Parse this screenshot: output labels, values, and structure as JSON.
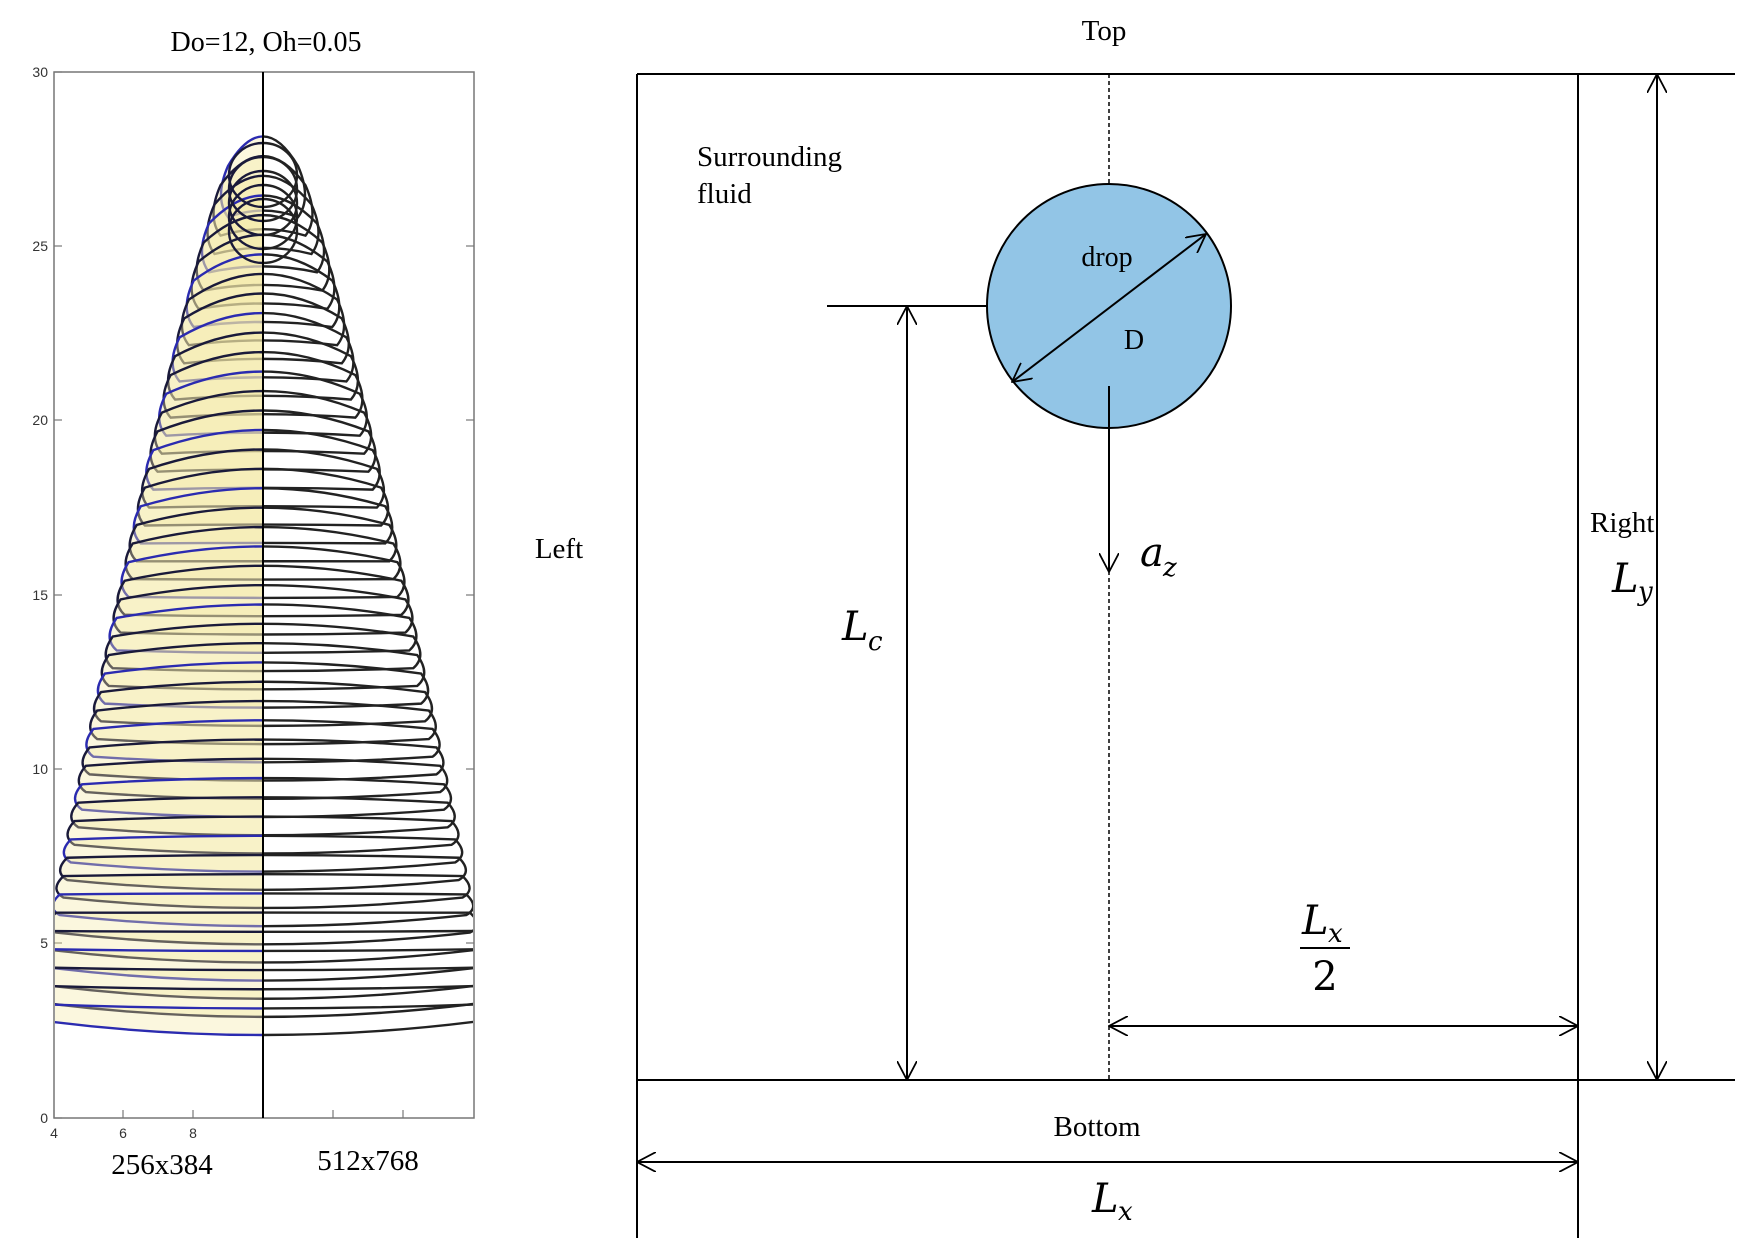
{
  "left_panel": {
    "title": "Do=12, Oh=0.05",
    "y_ticks": [
      "0",
      "5",
      "10",
      "15",
      "20",
      "25",
      "30"
    ],
    "x_ticks": [
      "4",
      "6",
      "8"
    ],
    "left_half_label": "256x384",
    "right_half_label": "512x768",
    "colors": {
      "left_contour": "#1a1a3a",
      "left_fill": "#f4e9a0",
      "left_edge": "#2b2bb0",
      "right_contour": "#222222"
    }
  },
  "domain_diagram": {
    "top_label": "Top",
    "bottom_label": "Bottom",
    "left_label": "Left",
    "right_label": "Right",
    "surrounding_fluid_line1": "Surrounding",
    "surrounding_fluid_line2": "fluid",
    "drop_label": "drop",
    "diameter_label": "D",
    "accel_symbol": "a",
    "accel_sub": "z",
    "lc_symbol": "L",
    "lc_sub": "c",
    "ly_symbol": "L",
    "ly_sub": "y",
    "lx_symbol": "L",
    "lx_sub": "x",
    "half_lx_num_symbol": "L",
    "half_lx_num_sub": "x",
    "half_lx_den": "2",
    "colors": {
      "drop_fill": "#92c5e6",
      "line": "#000000"
    }
  }
}
